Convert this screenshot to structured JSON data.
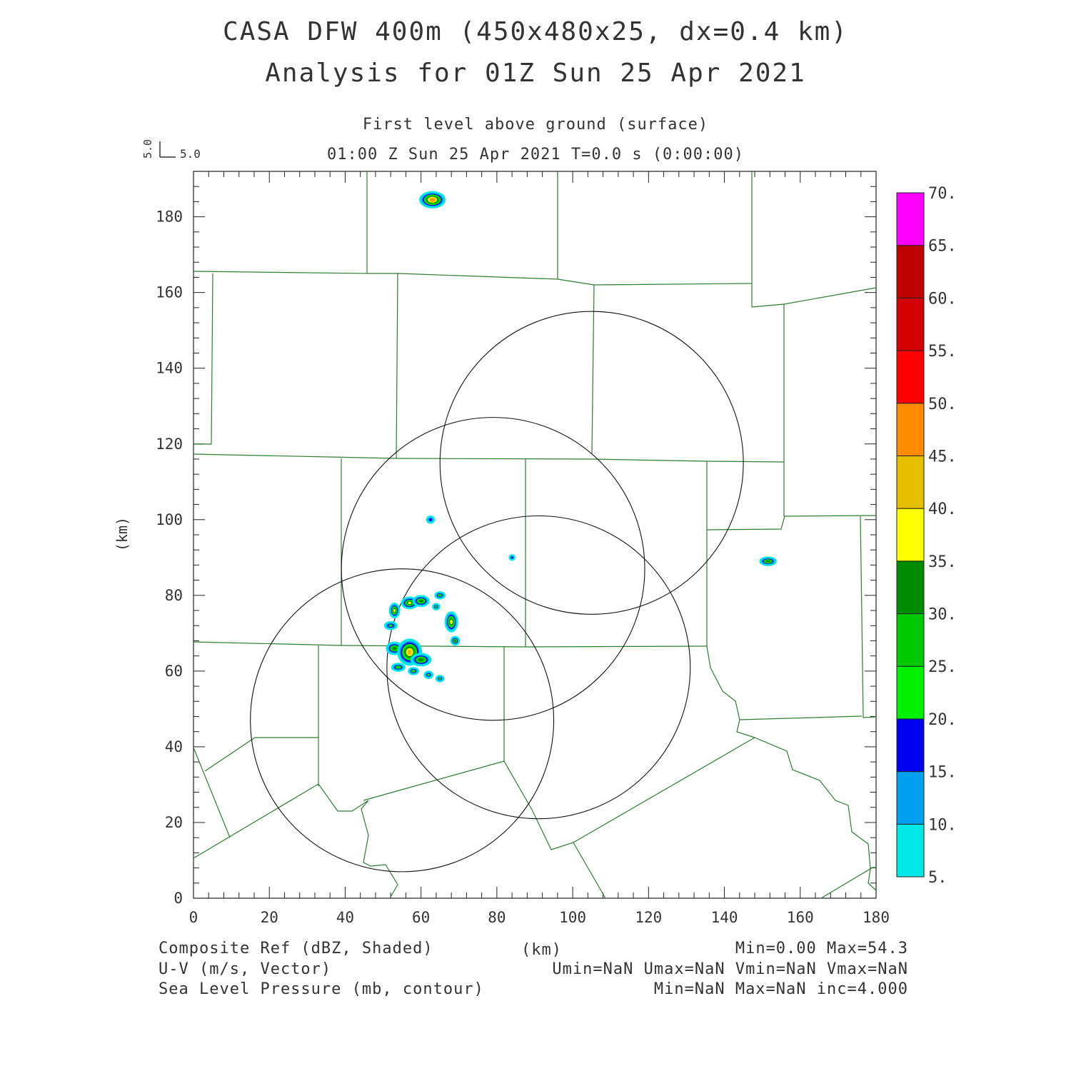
{
  "header": {
    "title_line1": "CASA DFW 400m (450x480x25, dx=0.4 km)",
    "title_line2": "Analysis for 01Z Sun 25 Apr 2021",
    "level": "First level above ground (surface)",
    "time": "01:00 Z Sun 25 Apr 2021   T=0.0 s (0:00:00)",
    "vector_scale_x": "5.0",
    "vector_scale_y": "5.0"
  },
  "axes": {
    "x_ticks": [
      "0",
      "20",
      "40",
      "60",
      "80",
      "100",
      "120",
      "140",
      "160",
      "180"
    ],
    "y_ticks": [
      "0",
      "20",
      "40",
      "60",
      "80",
      "100",
      "120",
      "140",
      "160",
      "180"
    ],
    "y_unit": "(km)",
    "x_unit": "(km)",
    "xlim": [
      0,
      180
    ],
    "ylim": [
      0,
      192
    ]
  },
  "colorbar": {
    "labels": [
      "5.",
      "10.",
      "15.",
      "20.",
      "25.",
      "30.",
      "35.",
      "40.",
      "45.",
      "50.",
      "55.",
      "60.",
      "65.",
      "70."
    ],
    "colors": [
      "#00e8e8",
      "#00a0f0",
      "#0000f0",
      "#00f000",
      "#00c800",
      "#008c00",
      "#ffff00",
      "#e6be00",
      "#ff8c00",
      "#ff0000",
      "#d20000",
      "#be0000",
      "#ff00ff"
    ]
  },
  "footer": {
    "left1": "Composite Ref (dBZ, Shaded)",
    "left2": "U-V (m/s, Vector)",
    "left3": "Sea Level Pressure (mb, contour)",
    "center": "(km)",
    "right1": "Min=0.00 Max=54.3",
    "right2": "Umin=NaN Umax=NaN Vmin=NaN Vmax=NaN",
    "right3": "Min=NaN Max=NaN inc=4.000"
  },
  "map_data": {
    "radar_range_rings": [
      {
        "cx": 105,
        "cy": 115,
        "r": 40
      },
      {
        "cx": 79,
        "cy": 87,
        "r": 40
      },
      {
        "cx": 91,
        "cy": 61,
        "r": 40
      },
      {
        "cx": 55,
        "cy": 47,
        "r": 40
      }
    ],
    "reflectivity_cells": [
      {
        "x": 63,
        "y": 184.5,
        "rx": 3.2,
        "ry": 2.0,
        "peak": 54
      },
      {
        "x": 62.5,
        "y": 100,
        "rx": 0.9,
        "ry": 0.8,
        "peak": 22
      },
      {
        "x": 84,
        "y": 90,
        "rx": 0.6,
        "ry": 0.6,
        "peak": 20
      },
      {
        "x": 151.5,
        "y": 89,
        "rx": 2.0,
        "ry": 1.0,
        "peak": 38
      },
      {
        "x": 53,
        "y": 76,
        "rx": 1.2,
        "ry": 1.8,
        "peak": 40
      },
      {
        "x": 57,
        "y": 78,
        "rx": 2.0,
        "ry": 1.4,
        "peak": 40
      },
      {
        "x": 60,
        "y": 78.5,
        "rx": 2.0,
        "ry": 1.3,
        "peak": 38
      },
      {
        "x": 65,
        "y": 80,
        "rx": 1.2,
        "ry": 0.8,
        "peak": 30
      },
      {
        "x": 64,
        "y": 77,
        "rx": 0.8,
        "ry": 0.7,
        "peak": 25
      },
      {
        "x": 68,
        "y": 73,
        "rx": 1.5,
        "ry": 2.5,
        "peak": 40
      },
      {
        "x": 52,
        "y": 72,
        "rx": 1.5,
        "ry": 0.9,
        "peak": 25
      },
      {
        "x": 69,
        "y": 68,
        "rx": 1.0,
        "ry": 1.0,
        "peak": 35
      },
      {
        "x": 53,
        "y": 66,
        "rx": 2.0,
        "ry": 1.5,
        "peak": 35
      },
      {
        "x": 57,
        "y": 65,
        "rx": 3.0,
        "ry": 3.3,
        "peak": 45
      },
      {
        "x": 60,
        "y": 63,
        "rx": 2.5,
        "ry": 1.5,
        "peak": 38
      },
      {
        "x": 54,
        "y": 61,
        "rx": 1.6,
        "ry": 0.9,
        "peak": 30
      },
      {
        "x": 58,
        "y": 60,
        "rx": 1.2,
        "ry": 0.8,
        "peak": 30
      },
      {
        "x": 62,
        "y": 59,
        "rx": 1.0,
        "ry": 0.8,
        "peak": 28
      },
      {
        "x": 65,
        "y": 58,
        "rx": 0.9,
        "ry": 0.7,
        "peak": 25
      }
    ]
  }
}
